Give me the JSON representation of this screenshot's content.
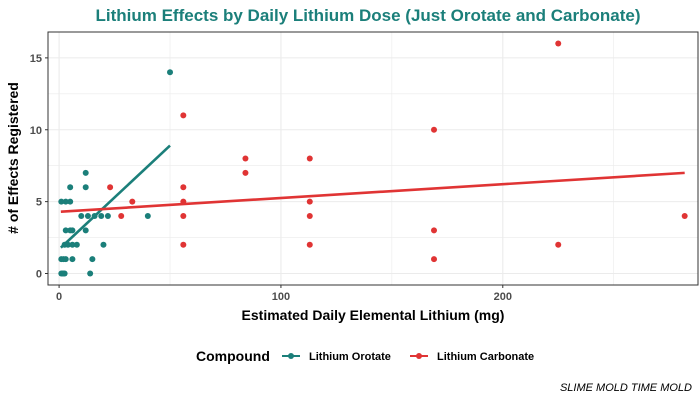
{
  "chart_data": {
    "type": "scatter",
    "title": "Lithium Effects by Daily Lithium Dose (Just Orotate and Carbonate)",
    "xlabel": "Estimated Daily Elemental Lithium (mg)",
    "ylabel": "# of Effects Registered",
    "xlim": [
      -5,
      288
    ],
    "ylim": [
      -0.8,
      16.8
    ],
    "x_ticks": [
      0,
      100,
      200
    ],
    "y_ticks": [
      0,
      5,
      10,
      15
    ],
    "grid": true,
    "legend_title": "Compound",
    "legend_position": "bottom",
    "caption": "SLIME MOLD TIME MOLD",
    "colors": {
      "title": "#1b7f7a",
      "orotate": "#1b7f7a",
      "carbonate": "#e03434",
      "grid": "#ebebeb",
      "panel_border": "#333333"
    },
    "series": [
      {
        "name": "Lithium Orotate",
        "color": "#1b7f7a",
        "points": [
          [
            1,
            0
          ],
          [
            1.5,
            0
          ],
          [
            2,
            0
          ],
          [
            2.5,
            0
          ],
          [
            1,
            1
          ],
          [
            2,
            1
          ],
          [
            3,
            1
          ],
          [
            6,
            1
          ],
          [
            15,
            1
          ],
          [
            14,
            0
          ],
          [
            2.5,
            2
          ],
          [
            4,
            2
          ],
          [
            6,
            2
          ],
          [
            8,
            2
          ],
          [
            20,
            2
          ],
          [
            3,
            3
          ],
          [
            5,
            3
          ],
          [
            6,
            3
          ],
          [
            12,
            3
          ],
          [
            10,
            4
          ],
          [
            13,
            4
          ],
          [
            16,
            4
          ],
          [
            19,
            4
          ],
          [
            22,
            4
          ],
          [
            40,
            4
          ],
          [
            1,
            5
          ],
          [
            3,
            5
          ],
          [
            5,
            5
          ],
          [
            5,
            6
          ],
          [
            12,
            6
          ],
          [
            12,
            7
          ],
          [
            50,
            14
          ]
        ],
        "trend": {
          "x": [
            0.8,
            50
          ],
          "y": [
            1.8,
            8.9
          ]
        }
      },
      {
        "name": "Lithium Carbonate",
        "color": "#e03434",
        "points": [
          [
            23,
            6
          ],
          [
            28,
            4
          ],
          [
            33,
            5
          ],
          [
            56,
            2
          ],
          [
            56,
            4
          ],
          [
            56,
            5
          ],
          [
            56,
            6
          ],
          [
            56,
            11
          ],
          [
            84,
            7
          ],
          [
            84,
            8
          ],
          [
            113,
            2
          ],
          [
            113,
            4
          ],
          [
            113,
            5
          ],
          [
            113,
            8
          ],
          [
            169,
            1
          ],
          [
            169,
            3
          ],
          [
            169,
            10
          ],
          [
            225,
            2
          ],
          [
            225,
            16
          ],
          [
            282,
            4
          ]
        ],
        "trend": {
          "x": [
            0.8,
            282
          ],
          "y": [
            4.3,
            7.0
          ]
        }
      }
    ]
  }
}
